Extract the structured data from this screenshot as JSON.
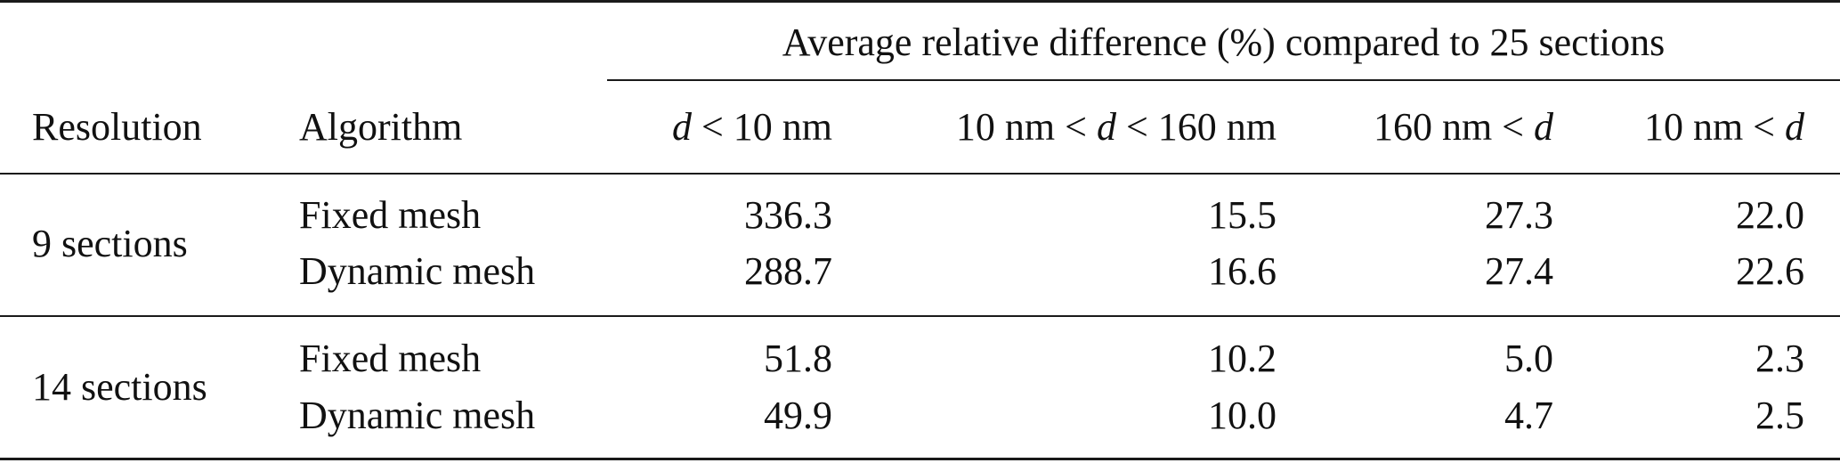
{
  "table": {
    "group_header": "Average relative difference (%) compared to 25 sections",
    "columns": {
      "resolution": "Resolution",
      "algorithm": "Algorithm",
      "col1": {
        "var": "d",
        "rest": " < 10 nm"
      },
      "col2": {
        "pre": "10 nm < ",
        "var": "d",
        "rest": " < 160 nm"
      },
      "col3": {
        "pre": "160 nm < ",
        "var": "d"
      },
      "col4": {
        "pre": "10 nm < ",
        "var": "d"
      }
    },
    "groups": [
      {
        "resolution": "9 sections",
        "rows": [
          {
            "algorithm": "Fixed mesh",
            "values": [
              "336.3",
              "15.5",
              "27.3",
              "22.0"
            ]
          },
          {
            "algorithm": "Dynamic mesh",
            "values": [
              "288.7",
              "16.6",
              "27.4",
              "22.6"
            ]
          }
        ]
      },
      {
        "resolution": "14 sections",
        "rows": [
          {
            "algorithm": "Fixed mesh",
            "values": [
              "51.8",
              "10.2",
              "5.0",
              "2.3"
            ]
          },
          {
            "algorithm": "Dynamic mesh",
            "values": [
              "49.9",
              "10.0",
              "4.7",
              "2.5"
            ]
          }
        ]
      }
    ]
  }
}
